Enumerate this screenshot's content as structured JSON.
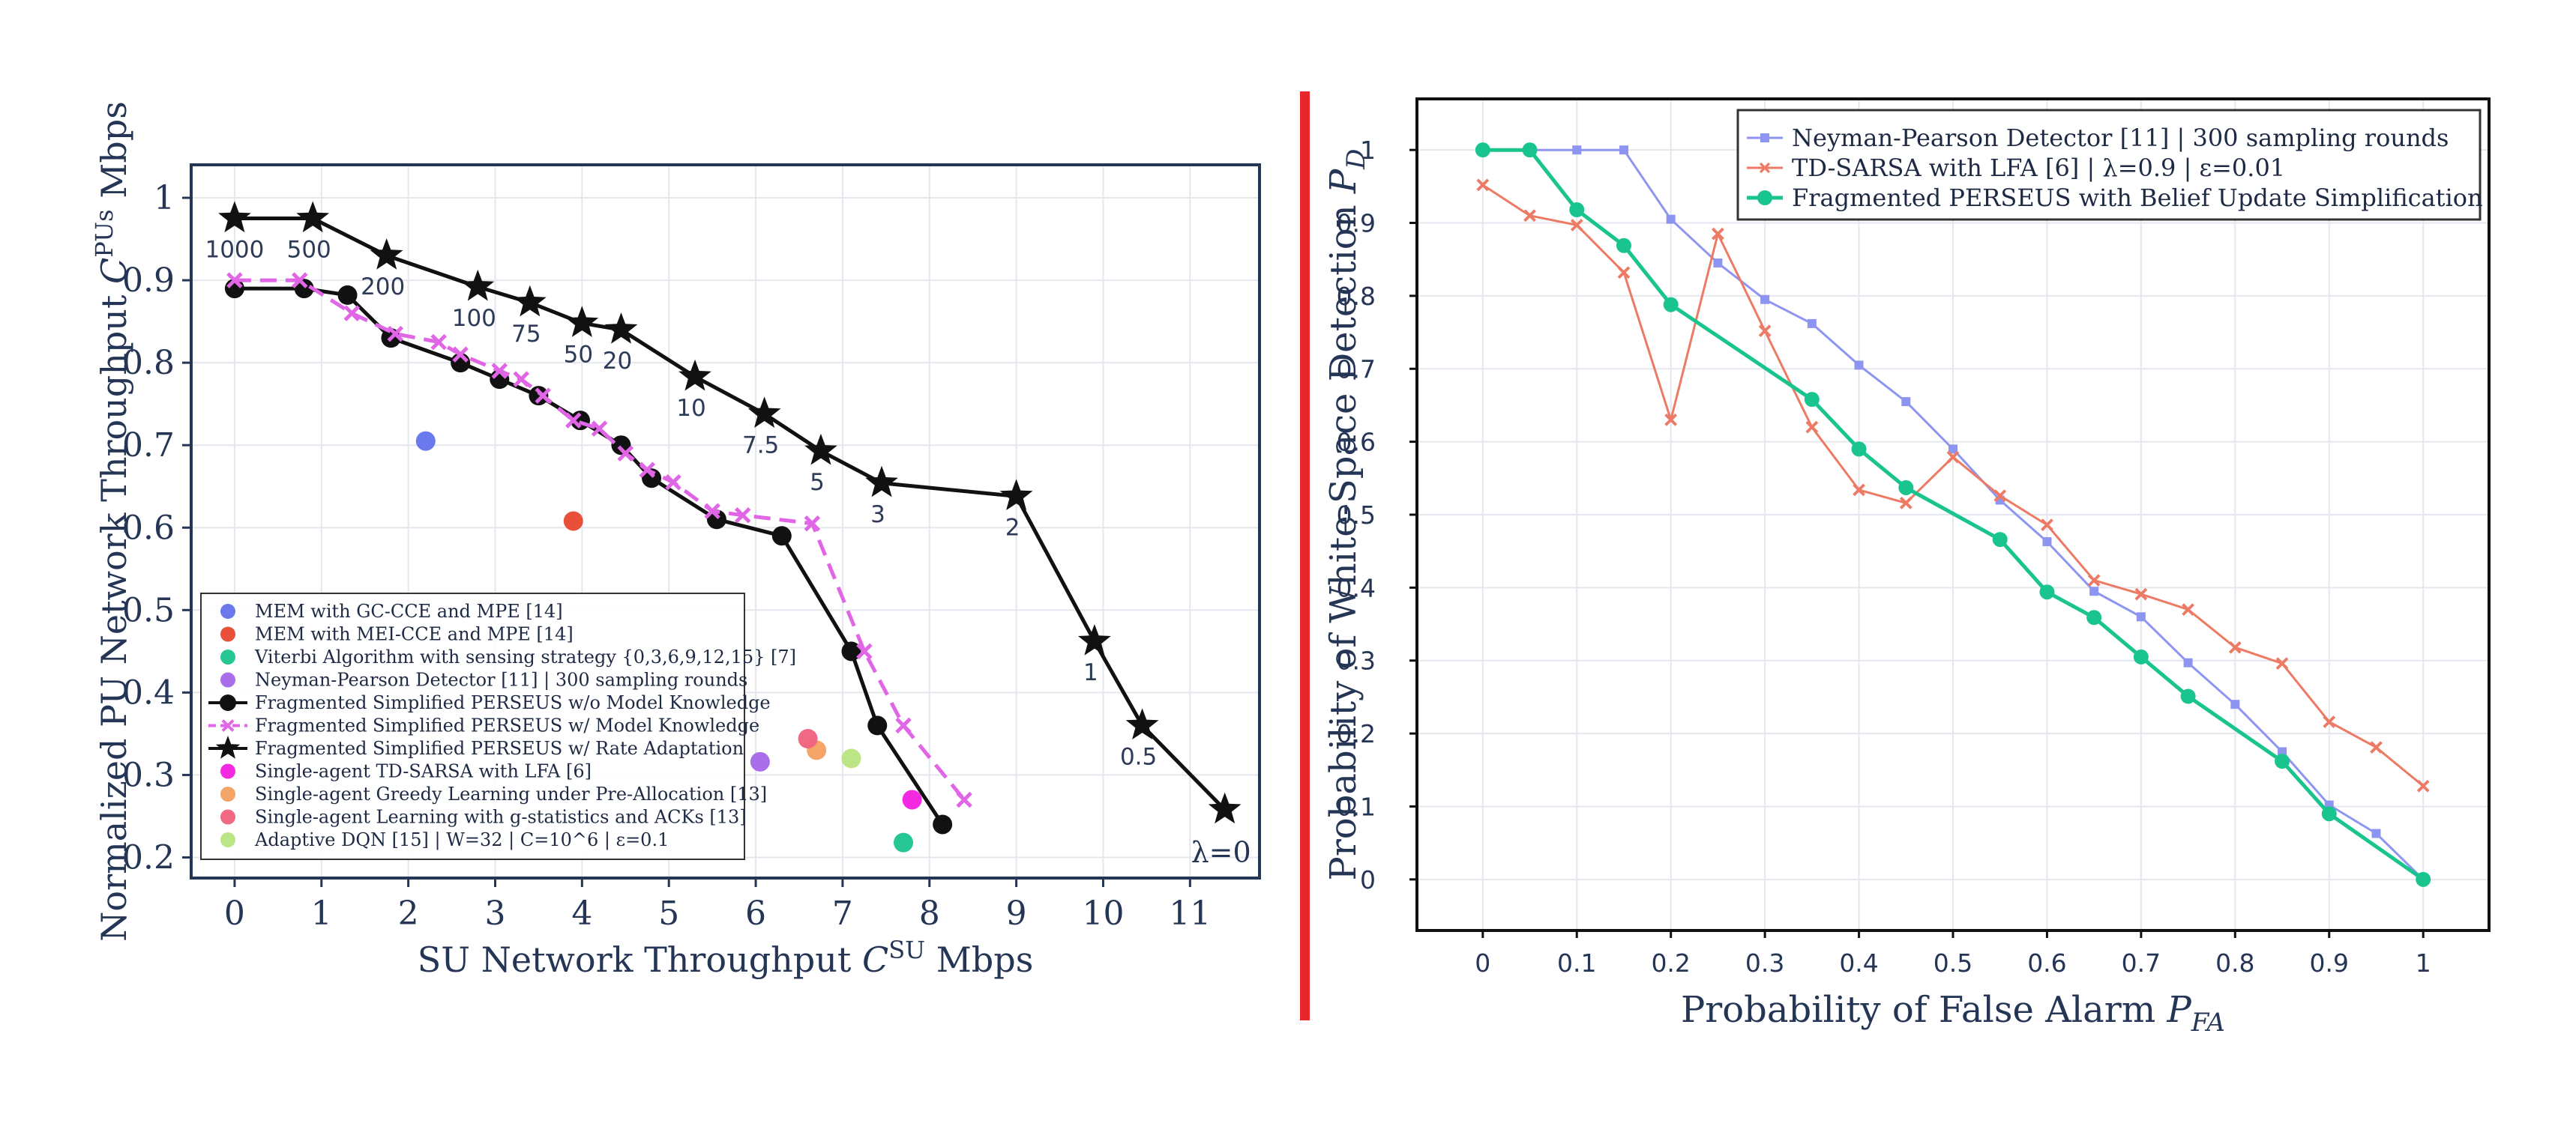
{
  "colors": {
    "divider": "#e8262b",
    "axis_left": "#253555",
    "grid": "#e5e7ee",
    "text": "#253555"
  },
  "chart_data": [
    {
      "type": "line",
      "xlabel_main": "SU Network Throughput ",
      "xlabel_sym": "C",
      "xlabel_sup": "SU",
      "xlabel_unit": " Mbps",
      "ylabel_main": "Normalized PU Network Throughput ",
      "ylabel_sym": "C",
      "ylabel_sup": "PUs",
      "ylabel_unit": " Mbps",
      "xlim": [
        -0.5,
        11.8
      ],
      "ylim": [
        0.175,
        1.04
      ],
      "xticks": [
        "0",
        "1",
        "2",
        "3",
        "4",
        "5",
        "6",
        "7",
        "8",
        "9",
        "10",
        "11"
      ],
      "yticks": [
        "0.2",
        "0.3",
        "0.4",
        "0.5",
        "0.6",
        "0.7",
        "0.8",
        "0.9",
        "1"
      ],
      "legend_position": "bottom-left",
      "series": [
        {
          "name": "Fragmented Simplified PERSEUS w/o Model Knowledge",
          "color": "#111111",
          "marker": "circle",
          "dash": "solid",
          "x": [
            0.0,
            0.8,
            1.3,
            1.8,
            2.6,
            3.05,
            3.5,
            3.98,
            4.45,
            4.8,
            5.55,
            6.3,
            7.1,
            7.4,
            8.15
          ],
          "y": [
            0.89,
            0.89,
            0.882,
            0.83,
            0.8,
            0.78,
            0.76,
            0.73,
            0.7,
            0.66,
            0.61,
            0.59,
            0.45,
            0.36,
            0.24
          ]
        },
        {
          "name": "Fragmented Simplified PERSEUS w/ Model Knowledge",
          "color": "#e066e6",
          "marker": "x",
          "dash": "dashed",
          "x": [
            0.0,
            0.75,
            1.35,
            1.85,
            2.35,
            2.6,
            3.05,
            3.3,
            3.55,
            3.9,
            4.2,
            4.5,
            4.75,
            5.05,
            5.5,
            5.85,
            6.65,
            7.25,
            7.7,
            8.4
          ],
          "y": [
            0.9,
            0.9,
            0.86,
            0.835,
            0.825,
            0.81,
            0.79,
            0.78,
            0.76,
            0.73,
            0.72,
            0.69,
            0.67,
            0.655,
            0.62,
            0.615,
            0.605,
            0.45,
            0.36,
            0.27
          ]
        },
        {
          "name": "Fragmented Simplified PERSEUS w/ Rate Adaptation",
          "color": "#111111",
          "marker": "star",
          "dash": "solid",
          "x": [
            0.0,
            0.9,
            1.75,
            2.8,
            3.4,
            4.0,
            4.45,
            5.3,
            6.1,
            6.75,
            7.45,
            9.0,
            9.9,
            10.45,
            11.4
          ],
          "y": [
            0.975,
            0.975,
            0.93,
            0.892,
            0.873,
            0.848,
            0.84,
            0.783,
            0.738,
            0.693,
            0.654,
            0.638,
            0.462,
            0.36,
            0.258
          ],
          "point_labels": [
            "1000",
            "500",
            "200",
            "100",
            "75",
            "50",
            "20",
            "10",
            "7.5",
            "5",
            "3",
            "2",
            "1",
            "0.5",
            "λ=0"
          ]
        },
        {
          "name": "MEM with GC-CCE and MPE [14]",
          "color": "#6272ea",
          "marker": "dot",
          "x": [
            2.2
          ],
          "y": [
            0.705
          ]
        },
        {
          "name": "MEM with MEI-CCE and MPE [14]",
          "color": "#e8472f",
          "marker": "dot",
          "x": [
            3.9
          ],
          "y": [
            0.608
          ]
        },
        {
          "name": "Viterbi Algorithm with sensing strategy {0,3,6,9,12,15} [7]",
          "color": "#1ac48e",
          "marker": "dot",
          "x": [
            7.7
          ],
          "y": [
            0.218
          ]
        },
        {
          "name": "Neyman-Pearson Detector [11] | 300 sampling rounds",
          "color": "#a467ea",
          "marker": "dot",
          "x": [
            6.05
          ],
          "y": [
            0.316
          ]
        },
        {
          "name": "Single-agent TD-SARSA with LFA [6]",
          "color": "#f21fe0",
          "marker": "dot",
          "x": [
            7.8
          ],
          "y": [
            0.27
          ]
        },
        {
          "name": "Single-agent Greedy Learning under Pre-Allocation [13]",
          "color": "#f4a05f",
          "marker": "dot",
          "x": [
            6.7
          ],
          "y": [
            0.33
          ]
        },
        {
          "name": "Single-agent Learning with g-statistics and ACKs [13]",
          "color": "#f0607e",
          "marker": "dot",
          "x": [
            6.6
          ],
          "y": [
            0.344
          ]
        },
        {
          "name": "Adaptive DQN [15] | W=32 | C=10^6 | ε=0.1",
          "color": "#b8e47e",
          "marker": "dot",
          "x": [
            7.1
          ],
          "y": [
            0.32
          ]
        }
      ],
      "legend_entries": [
        {
          "label": "MEM with GC-CCE and MPE [14]",
          "color": "#6272ea",
          "marker": "dot"
        },
        {
          "label": "MEM with MEI-CCE and MPE [14]",
          "color": "#e8472f",
          "marker": "dot"
        },
        {
          "label": "Viterbi Algorithm with sensing strategy {0,3,6,9,12,15} [7]",
          "color": "#1ac48e",
          "marker": "dot"
        },
        {
          "label": "Neyman-Pearson Detector [11] | 300 sampling rounds",
          "color": "#a467ea",
          "marker": "dot"
        },
        {
          "label": "Fragmented Simplified PERSEUS w/o Model Knowledge",
          "color": "#111111",
          "marker": "circle-line"
        },
        {
          "label": "Fragmented Simplified PERSEUS w/ Model Knowledge",
          "color": "#e066e6",
          "marker": "x-dash"
        },
        {
          "label": "Fragmented Simplified PERSEUS w/ Rate Adaptation",
          "color": "#111111",
          "marker": "star-line"
        },
        {
          "label": "Single-agent TD-SARSA with LFA [6]",
          "color": "#f21fe0",
          "marker": "dot"
        },
        {
          "label": "Single-agent Greedy Learning under Pre-Allocation [13]",
          "color": "#f4a05f",
          "marker": "dot"
        },
        {
          "label": "Single-agent Learning with g-statistics and ACKs [13]",
          "color": "#f0607e",
          "marker": "dot"
        },
        {
          "label": "Adaptive DQN [15] | W=32 | C=10^6 | ε=0.1",
          "color": "#b8e47e",
          "marker": "dot"
        }
      ]
    },
    {
      "type": "line",
      "xlabel_main": "Probability of False Alarm ",
      "xlabel_sym": "P",
      "xlabel_sub": "FA",
      "ylabel_main": "Probability of White-Space Detection ",
      "ylabel_sym": "P",
      "ylabel_sub": "D",
      "xlim": [
        -0.07,
        1.07
      ],
      "ylim": [
        -0.07,
        1.07
      ],
      "xticks": [
        "0",
        "0.1",
        "0.2",
        "0.3",
        "0.4",
        "0.5",
        "0.6",
        "0.7",
        "0.8",
        "0.9",
        "1"
      ],
      "yticks": [
        "0",
        "0.1",
        "0.2",
        "0.3",
        "0.4",
        "0.5",
        "0.6",
        "0.7",
        "0.8",
        "0.9",
        "1"
      ],
      "legend_position": "top-right",
      "series": [
        {
          "name": "Neyman-Pearson Detector [11] | 300 sampling rounds",
          "color": "#8e95f0",
          "marker": "square",
          "x": [
            0.0,
            0.05,
            0.1,
            0.15,
            0.2,
            0.25,
            0.3,
            0.35,
            0.4,
            0.45,
            0.5,
            0.55,
            0.6,
            0.65,
            0.7,
            0.75,
            0.8,
            0.85,
            0.9,
            0.95,
            1.0
          ],
          "y": [
            1.0,
            1.0,
            1.0,
            1.0,
            0.905,
            0.845,
            0.795,
            0.762,
            0.705,
            0.655,
            0.59,
            0.52,
            0.463,
            0.395,
            0.36,
            0.297,
            0.24,
            0.175,
            0.102,
            0.063,
            0.0
          ]
        },
        {
          "name": "TD-SARSA with LFA [6] | λ=0.9 | ε=0.01",
          "color": "#ec7a64",
          "marker": "x",
          "x": [
            0.0,
            0.05,
            0.1,
            0.15,
            0.2,
            0.25,
            0.3,
            0.35,
            0.4,
            0.45,
            0.5,
            0.55,
            0.6,
            0.65,
            0.7,
            0.75,
            0.8,
            0.85,
            0.9,
            0.95,
            1.0
          ],
          "y": [
            0.952,
            0.91,
            0.897,
            0.832,
            0.63,
            0.885,
            0.752,
            0.62,
            0.534,
            0.516,
            0.579,
            0.526,
            0.486,
            0.41,
            0.391,
            0.37,
            0.318,
            0.296,
            0.216,
            0.181,
            0.128
          ]
        },
        {
          "name": "Fragmented PERSEUS with Belief Update Simplification",
          "color": "#1ac48e",
          "marker": "circle",
          "x": [
            0.0,
            0.05,
            0.1,
            0.15,
            0.2,
            0.35,
            0.4,
            0.45,
            0.55,
            0.6,
            0.65,
            0.7,
            0.75,
            0.85,
            0.9,
            1.0
          ],
          "y": [
            1.0,
            1.0,
            0.918,
            0.869,
            0.788,
            0.658,
            0.59,
            0.537,
            0.466,
            0.394,
            0.359,
            0.305,
            0.251,
            0.162,
            0.09,
            0.0
          ]
        }
      ]
    }
  ]
}
